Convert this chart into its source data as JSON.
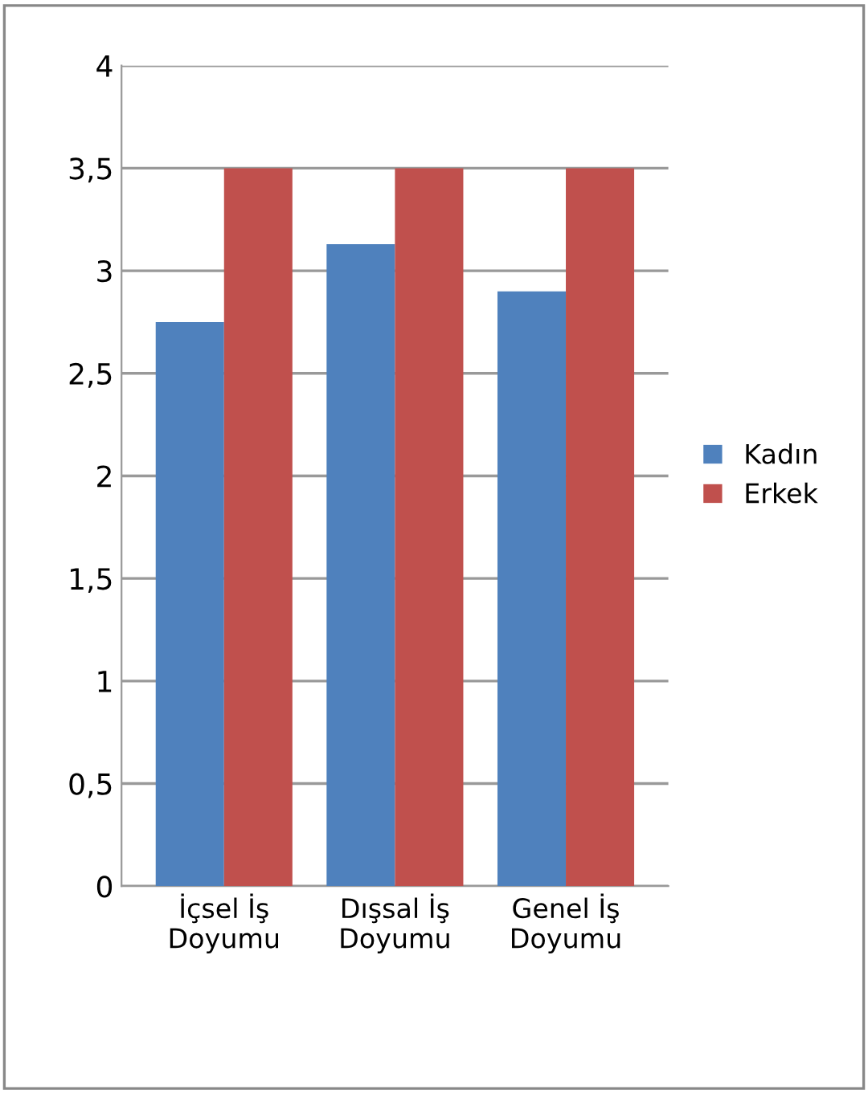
{
  "chart_data": {
    "type": "bar",
    "categories": [
      "İçsel İş\nDoyumu",
      "Dışsal İş\nDoyumu",
      "Genel İş\nDoyumu"
    ],
    "series": [
      {
        "name": "Kadın",
        "color": "#4f81bd",
        "values": [
          2.75,
          3.13,
          2.9
        ]
      },
      {
        "name": "Erkek",
        "color": "#c0504d",
        "values": [
          3.5,
          3.5,
          3.5
        ]
      }
    ],
    "ylim": [
      0,
      4
    ],
    "yticks": [
      0,
      {
        "value": 0.5,
        "label": "0,5"
      },
      1,
      {
        "value": 1.5,
        "label": "1,5"
      },
      2,
      {
        "value": 2.5,
        "label": "2,5"
      },
      3,
      {
        "value": 3.5,
        "label": "3,5"
      },
      4
    ],
    "grid": "y",
    "legend": "right"
  }
}
